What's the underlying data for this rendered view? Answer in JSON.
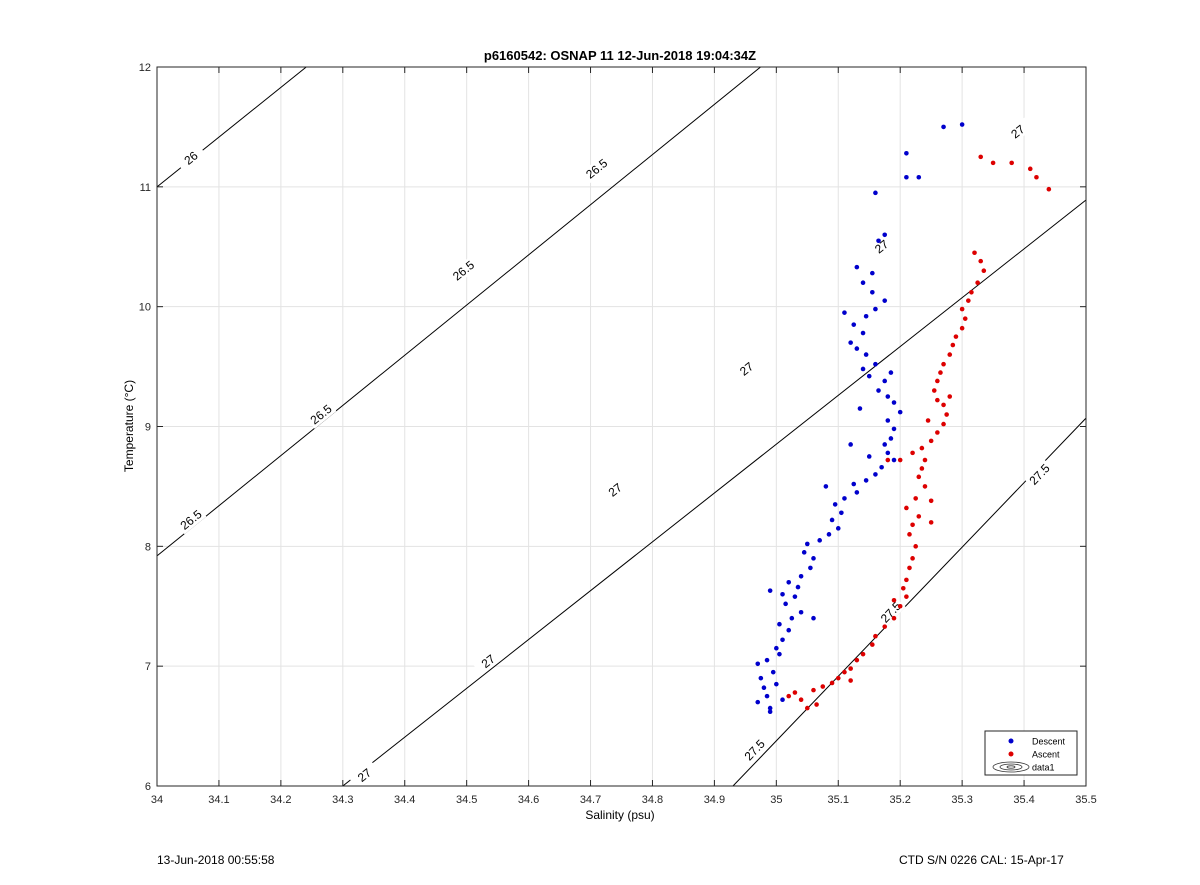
{
  "chart_data": {
    "type": "scatter",
    "title": "p6160542: OSNAP 11 12-Jun-2018 19:04:34Z",
    "xlabel": "Salinity (psu)",
    "ylabel": "Temperature (°C)",
    "xlim": [
      34,
      35.5
    ],
    "ylim": [
      6,
      12
    ],
    "x_ticks": [
      "34",
      "34.1",
      "34.2",
      "34.3",
      "34.4",
      "34.5",
      "34.6",
      "34.7",
      "34.8",
      "34.9",
      "35",
      "35.1",
      "35.2",
      "35.3",
      "35.4",
      "35.5"
    ],
    "y_ticks": [
      "6",
      "7",
      "8",
      "9",
      "10",
      "11",
      "12"
    ],
    "grid": true,
    "legend_position": "bottom-right",
    "legend": [
      "Descent",
      "Ascent",
      "data1"
    ],
    "colors": {
      "descent": "#0000cc",
      "ascent": "#dd0000",
      "contour": "#000000"
    },
    "contours": [
      {
        "level": "26",
        "points": [
          [
            34.0,
            11.0
          ],
          [
            34.241,
            12.0
          ]
        ],
        "labels": [
          [
            34.055,
            11.24
          ]
        ]
      },
      {
        "level": "26.5",
        "points": [
          [
            34.0,
            7.92
          ],
          [
            35.5,
            14.2
          ]
        ],
        "labels": [
          [
            34.055,
            8.22
          ],
          [
            34.265,
            9.1
          ],
          [
            34.495,
            10.3
          ],
          [
            34.71,
            11.15
          ]
        ]
      },
      {
        "level": "27",
        "points": [
          [
            34.3,
            6.0
          ],
          [
            35.5,
            10.89
          ]
        ],
        "labels": [
          [
            34.335,
            6.09
          ],
          [
            34.535,
            7.04
          ],
          [
            34.74,
            8.47
          ],
          [
            34.952,
            9.48
          ],
          [
            35.17,
            10.5
          ],
          [
            35.39,
            11.46
          ]
        ]
      },
      {
        "level": "27.5",
        "points": [
          [
            34.93,
            6.0
          ],
          [
            35.5,
            9.07
          ]
        ],
        "labels": [
          [
            34.965,
            6.3
          ],
          [
            35.185,
            7.45
          ],
          [
            35.425,
            8.6
          ]
        ]
      }
    ],
    "series": [
      {
        "name": "Descent",
        "points": [
          [
            34.99,
            6.62
          ],
          [
            34.97,
            6.7
          ],
          [
            34.985,
            6.75
          ],
          [
            34.98,
            6.82
          ],
          [
            35.0,
            6.85
          ],
          [
            34.975,
            6.9
          ],
          [
            34.995,
            6.95
          ],
          [
            35.01,
            6.72
          ],
          [
            34.97,
            7.02
          ],
          [
            34.985,
            7.05
          ],
          [
            35.005,
            7.1
          ],
          [
            34.99,
            6.65
          ],
          [
            35.0,
            7.15
          ],
          [
            35.01,
            7.22
          ],
          [
            35.02,
            7.3
          ],
          [
            35.005,
            7.35
          ],
          [
            35.025,
            7.4
          ],
          [
            35.04,
            7.45
          ],
          [
            35.06,
            7.4
          ],
          [
            35.015,
            7.52
          ],
          [
            35.03,
            7.58
          ],
          [
            35.01,
            7.6
          ],
          [
            34.99,
            7.63
          ],
          [
            35.035,
            7.66
          ],
          [
            35.02,
            7.7
          ],
          [
            35.04,
            7.75
          ],
          [
            35.055,
            7.82
          ],
          [
            35.06,
            7.9
          ],
          [
            35.045,
            7.95
          ],
          [
            35.05,
            8.02
          ],
          [
            35.07,
            8.05
          ],
          [
            35.085,
            8.1
          ],
          [
            35.1,
            8.15
          ],
          [
            35.09,
            8.22
          ],
          [
            35.105,
            8.28
          ],
          [
            35.095,
            8.35
          ],
          [
            35.11,
            8.4
          ],
          [
            35.13,
            8.45
          ],
          [
            35.125,
            8.52
          ],
          [
            35.145,
            8.55
          ],
          [
            35.16,
            8.6
          ],
          [
            35.17,
            8.66
          ],
          [
            35.19,
            8.72
          ],
          [
            35.18,
            8.78
          ],
          [
            35.175,
            8.85
          ],
          [
            35.185,
            8.9
          ],
          [
            35.19,
            8.98
          ],
          [
            35.18,
            9.05
          ],
          [
            35.2,
            9.12
          ],
          [
            35.19,
            9.2
          ],
          [
            35.18,
            9.25
          ],
          [
            35.165,
            9.3
          ],
          [
            35.175,
            9.38
          ],
          [
            35.15,
            9.42
          ],
          [
            35.14,
            9.48
          ],
          [
            35.16,
            9.52
          ],
          [
            35.145,
            9.6
          ],
          [
            35.13,
            9.65
          ],
          [
            35.12,
            9.7
          ],
          [
            35.14,
            9.78
          ],
          [
            35.125,
            9.85
          ],
          [
            35.145,
            9.92
          ],
          [
            35.16,
            9.98
          ],
          [
            35.175,
            10.05
          ],
          [
            35.155,
            10.12
          ],
          [
            35.14,
            10.2
          ],
          [
            35.155,
            10.28
          ],
          [
            35.13,
            10.33
          ],
          [
            35.165,
            10.55
          ],
          [
            35.175,
            10.6
          ],
          [
            35.16,
            10.95
          ],
          [
            35.21,
            11.08
          ],
          [
            35.23,
            11.08
          ],
          [
            35.21,
            11.28
          ],
          [
            35.27,
            11.5
          ],
          [
            35.3,
            11.52
          ],
          [
            35.08,
            8.5
          ],
          [
            35.12,
            8.85
          ],
          [
            35.135,
            9.15
          ],
          [
            35.185,
            9.45
          ],
          [
            35.11,
            9.95
          ],
          [
            35.15,
            8.75
          ]
        ]
      },
      {
        "name": "Ascent",
        "points": [
          [
            35.05,
            6.65
          ],
          [
            35.065,
            6.68
          ],
          [
            35.04,
            6.72
          ],
          [
            35.02,
            6.75
          ],
          [
            35.03,
            6.78
          ],
          [
            35.06,
            6.8
          ],
          [
            35.075,
            6.83
          ],
          [
            35.09,
            6.86
          ],
          [
            35.1,
            6.9
          ],
          [
            35.12,
            6.98
          ],
          [
            35.13,
            7.05
          ],
          [
            35.14,
            7.1
          ],
          [
            35.155,
            7.18
          ],
          [
            35.16,
            7.25
          ],
          [
            35.175,
            7.33
          ],
          [
            35.19,
            7.4
          ],
          [
            35.2,
            7.5
          ],
          [
            35.21,
            7.58
          ],
          [
            35.205,
            7.65
          ],
          [
            35.21,
            7.72
          ],
          [
            35.215,
            7.82
          ],
          [
            35.22,
            7.9
          ],
          [
            35.225,
            8.0
          ],
          [
            35.215,
            8.1
          ],
          [
            35.22,
            8.18
          ],
          [
            35.23,
            8.25
          ],
          [
            35.21,
            8.32
          ],
          [
            35.225,
            8.4
          ],
          [
            35.24,
            8.5
          ],
          [
            35.23,
            8.58
          ],
          [
            35.235,
            8.65
          ],
          [
            35.24,
            8.72
          ],
          [
            35.22,
            8.78
          ],
          [
            35.235,
            8.82
          ],
          [
            35.25,
            8.88
          ],
          [
            35.26,
            8.95
          ],
          [
            35.27,
            9.02
          ],
          [
            35.275,
            9.1
          ],
          [
            35.27,
            9.18
          ],
          [
            35.26,
            9.22
          ],
          [
            35.255,
            9.3
          ],
          [
            35.26,
            9.38
          ],
          [
            35.265,
            9.45
          ],
          [
            35.27,
            9.52
          ],
          [
            35.28,
            9.6
          ],
          [
            35.285,
            9.68
          ],
          [
            35.29,
            9.75
          ],
          [
            35.3,
            9.82
          ],
          [
            35.305,
            9.9
          ],
          [
            35.3,
            9.98
          ],
          [
            35.31,
            10.05
          ],
          [
            35.315,
            10.12
          ],
          [
            35.325,
            10.2
          ],
          [
            35.335,
            10.3
          ],
          [
            35.33,
            10.38
          ],
          [
            35.32,
            10.45
          ],
          [
            35.33,
            11.25
          ],
          [
            35.35,
            11.2
          ],
          [
            35.38,
            11.2
          ],
          [
            35.41,
            11.15
          ],
          [
            35.42,
            11.08
          ],
          [
            35.44,
            10.98
          ],
          [
            35.25,
            8.2
          ],
          [
            35.25,
            8.38
          ],
          [
            35.2,
            8.72
          ],
          [
            35.18,
            8.72
          ],
          [
            35.28,
            9.25
          ],
          [
            35.245,
            9.05
          ],
          [
            35.19,
            7.55
          ],
          [
            35.11,
            6.95
          ],
          [
            35.12,
            6.88
          ]
        ]
      }
    ]
  },
  "footer": {
    "left": "13-Jun-2018 00:55:58",
    "right": "CTD S/N 0226  CAL: 15-Apr-17"
  }
}
